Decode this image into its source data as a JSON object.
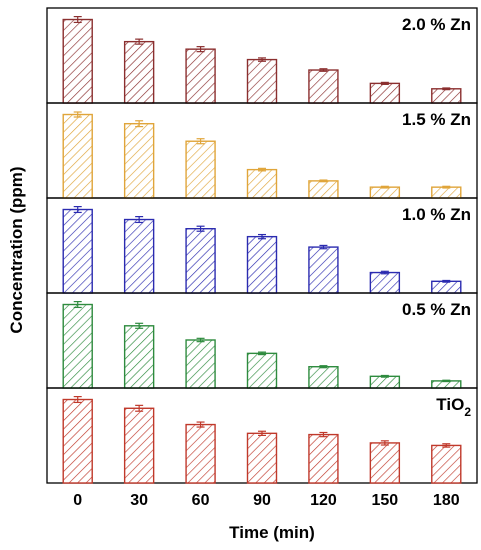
{
  "chart_data": {
    "type": "bar",
    "xlabel": "Time (min)",
    "ylabel": "Concentration (ppm)",
    "categories": [
      "0",
      "30",
      "60",
      "90",
      "120",
      "150",
      "180"
    ],
    "panels": [
      {
        "label": "2.0 % Zn",
        "color": "#8B2F2F",
        "values": [
          10.0,
          7.35,
          6.45,
          5.2,
          3.95,
          2.35,
          1.7
        ],
        "errors": [
          0.35,
          0.3,
          0.3,
          0.2,
          0.15,
          0.12,
          0.1
        ]
      },
      {
        "label": "1.5 % Zn",
        "color": "#E0A53A",
        "values": [
          10.0,
          8.9,
          6.8,
          3.4,
          2.05,
          1.3,
          1.3
        ],
        "errors": [
          0.3,
          0.35,
          0.3,
          0.15,
          0.1,
          0.1,
          0.1
        ]
      },
      {
        "label": "1.0 % Zn",
        "color": "#2B2BB0",
        "values": [
          10.0,
          8.8,
          7.7,
          6.75,
          5.5,
          2.45,
          1.4
        ],
        "errors": [
          0.35,
          0.35,
          0.3,
          0.25,
          0.2,
          0.15,
          0.1
        ]
      },
      {
        "label": "0.5 % Zn",
        "color": "#2E8B3E",
        "values": [
          10.0,
          7.45,
          5.75,
          4.15,
          2.55,
          1.4,
          0.85
        ],
        "errors": [
          0.35,
          0.3,
          0.2,
          0.15,
          0.12,
          0.1,
          0.08
        ]
      },
      {
        "label_main": "TiO",
        "label_sub": "2",
        "color": "#C0392B",
        "values": [
          10.0,
          8.95,
          7.0,
          5.95,
          5.8,
          4.8,
          4.5
        ],
        "errors": [
          0.35,
          0.35,
          0.3,
          0.25,
          0.25,
          0.25,
          0.2
        ]
      }
    ]
  }
}
